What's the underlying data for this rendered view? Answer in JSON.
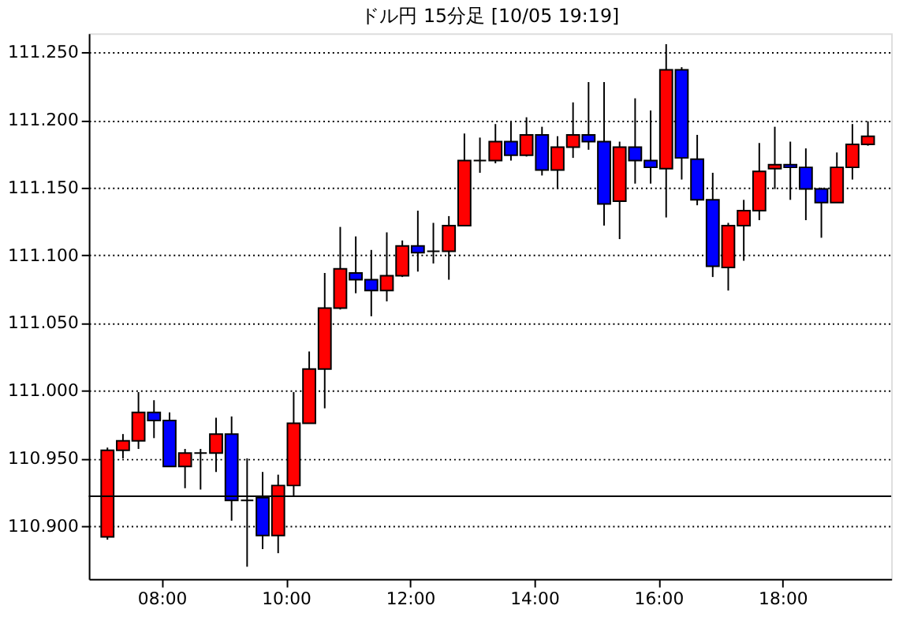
{
  "chart_data": {
    "type": "candlestick",
    "title": "ドル円 15分足 [10/05 19:19]",
    "x": [
      7.125,
      7.375,
      7.625,
      7.875,
      8.125,
      8.375,
      8.625,
      8.875,
      9.125,
      9.375,
      9.625,
      9.875,
      10.125,
      10.375,
      10.625,
      10.875,
      11.125,
      11.375,
      11.625,
      11.875,
      12.125,
      12.375,
      12.625,
      12.875,
      13.125,
      13.375,
      13.625,
      13.875,
      14.125,
      14.375,
      14.625,
      14.875,
      15.125,
      15.375,
      15.625,
      15.875,
      16.125,
      16.375,
      16.625,
      16.875,
      17.125,
      17.375,
      17.625,
      17.875,
      18.125,
      18.375,
      18.625,
      18.875,
      19.125,
      19.375
    ],
    "ohlc": [
      [
        110.892,
        110.958,
        110.89,
        110.956
      ],
      [
        110.956,
        110.968,
        110.95,
        110.963
      ],
      [
        110.963,
        110.999,
        110.957,
        110.984
      ],
      [
        110.984,
        110.993,
        110.965,
        110.978
      ],
      [
        110.978,
        110.984,
        110.944,
        110.944
      ],
      [
        110.944,
        110.957,
        110.928,
        110.954
      ],
      [
        110.954,
        110.957,
        110.927,
        110.954
      ],
      [
        110.954,
        110.98,
        110.94,
        110.968
      ],
      [
        110.968,
        110.981,
        110.904,
        110.919
      ],
      [
        110.919,
        110.95,
        110.87,
        110.919
      ],
      [
        110.921,
        110.94,
        110.883,
        110.893
      ],
      [
        110.893,
        110.938,
        110.88,
        110.93
      ],
      [
        110.93,
        110.999,
        110.922,
        110.976
      ],
      [
        110.976,
        111.029,
        110.976,
        111.016
      ],
      [
        111.016,
        111.087,
        110.987,
        111.061
      ],
      [
        111.061,
        111.121,
        111.06,
        111.09
      ],
      [
        111.087,
        111.114,
        111.072,
        111.082
      ],
      [
        111.082,
        111.104,
        111.055,
        111.074
      ],
      [
        111.074,
        111.117,
        111.066,
        111.085
      ],
      [
        111.085,
        111.111,
        111.084,
        111.107
      ],
      [
        111.107,
        111.133,
        111.088,
        111.102
      ],
      [
        111.103,
        111.124,
        111.094,
        111.103
      ],
      [
        111.103,
        111.129,
        111.082,
        111.122
      ],
      [
        111.122,
        111.19,
        111.122,
        111.17
      ],
      [
        111.17,
        111.187,
        111.161,
        111.17
      ],
      [
        111.17,
        111.197,
        111.168,
        111.184
      ],
      [
        111.184,
        111.199,
        111.17,
        111.174
      ],
      [
        111.174,
        111.202,
        111.173,
        111.189
      ],
      [
        111.189,
        111.195,
        111.159,
        111.163
      ],
      [
        111.163,
        111.188,
        111.149,
        111.18
      ],
      [
        111.18,
        111.213,
        111.172,
        111.189
      ],
      [
        111.189,
        111.228,
        111.178,
        111.184
      ],
      [
        111.184,
        111.228,
        111.122,
        111.138
      ],
      [
        111.14,
        111.184,
        111.112,
        111.18
      ],
      [
        111.18,
        111.216,
        111.153,
        111.17
      ],
      [
        111.17,
        111.207,
        111.153,
        111.165
      ],
      [
        111.164,
        111.256,
        111.128,
        111.237
      ],
      [
        111.237,
        111.239,
        111.156,
        111.172
      ],
      [
        111.171,
        111.189,
        111.137,
        111.141
      ],
      [
        111.141,
        111.161,
        111.084,
        111.092
      ],
      [
        111.091,
        111.124,
        111.074,
        111.122
      ],
      [
        111.122,
        111.141,
        111.096,
        111.133
      ],
      [
        111.133,
        111.183,
        111.126,
        111.162
      ],
      [
        111.164,
        111.195,
        111.149,
        111.167
      ],
      [
        111.167,
        111.184,
        111.141,
        111.165
      ],
      [
        111.165,
        111.179,
        111.126,
        111.149
      ],
      [
        111.149,
        111.15,
        111.113,
        111.139
      ],
      [
        111.139,
        111.176,
        111.139,
        111.165
      ],
      [
        111.165,
        111.197,
        111.156,
        111.182
      ],
      [
        111.182,
        111.199,
        111.181,
        111.188
      ]
    ],
    "colors": [
      "#ff0000",
      "#ff0000",
      "#ff0000",
      "#0000ff",
      "#0000ff",
      "#ff0000",
      "#000000",
      "#ff0000",
      "#0000ff",
      "#000000",
      "#0000ff",
      "#ff0000",
      "#ff0000",
      "#ff0000",
      "#ff0000",
      "#ff0000",
      "#0000ff",
      "#0000ff",
      "#ff0000",
      "#ff0000",
      "#0000ff",
      "#000000",
      "#ff0000",
      "#ff0000",
      "#000000",
      "#ff0000",
      "#0000ff",
      "#ff0000",
      "#0000ff",
      "#ff0000",
      "#ff0000",
      "#0000ff",
      "#0000ff",
      "#ff0000",
      "#0000ff",
      "#0000ff",
      "#ff0000",
      "#0000ff",
      "#0000ff",
      "#0000ff",
      "#ff0000",
      "#ff0000",
      "#ff0000",
      "#ff0000",
      "#0000ff",
      "#0000ff",
      "#0000ff",
      "#ff0000",
      "#ff0000",
      "#ff0000"
    ],
    "xlim": [
      6.825,
      19.75
    ],
    "xticks": [
      {
        "value": 8,
        "label": "08:00"
      },
      {
        "value": 10,
        "label": "10:00"
      },
      {
        "value": 12,
        "label": "12:00"
      },
      {
        "value": 14,
        "label": "14:00"
      },
      {
        "value": 16,
        "label": "16:00"
      },
      {
        "value": 18,
        "label": "18:00"
      }
    ],
    "ylim": [
      110.861,
      111.264
    ],
    "yticks": [
      {
        "value": 110.9,
        "label": "110.900"
      },
      {
        "value": 110.95,
        "label": "110.950"
      },
      {
        "value": 111.0,
        "label": "111.000"
      },
      {
        "value": 111.05,
        "label": "111.050"
      },
      {
        "value": 111.1,
        "label": "111.100"
      },
      {
        "value": 111.15,
        "label": "111.150"
      },
      {
        "value": 111.2,
        "label": "111.200"
      },
      {
        "value": 111.25,
        "label": "111.250"
      }
    ],
    "ref_lines": [
      {
        "axis": "y",
        "value": 110.922,
        "color": "#000000"
      }
    ],
    "grid": "y"
  }
}
